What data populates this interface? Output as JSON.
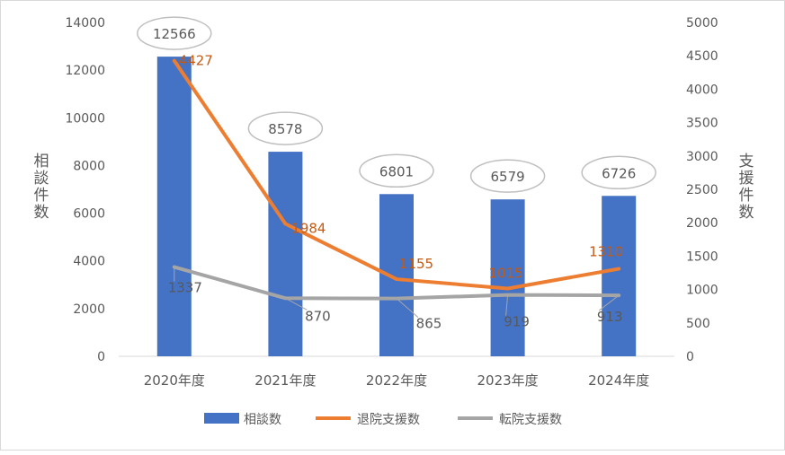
{
  "chart_data": {
    "type": "bar",
    "categories": [
      "2020年度",
      "2021年度",
      "2022年度",
      "2023年度",
      "2024年度"
    ],
    "left_axis": {
      "label": "相談件数",
      "ylim": [
        0,
        14000
      ],
      "ticks": [
        0,
        2000,
        4000,
        6000,
        8000,
        10000,
        12000,
        14000
      ]
    },
    "right_axis": {
      "label": "支援件数",
      "ylim": [
        0,
        5000
      ],
      "ticks": [
        0,
        500,
        1000,
        1500,
        2000,
        2500,
        3000,
        3500,
        4000,
        4500,
        5000
      ]
    },
    "series": [
      {
        "name": "相談数",
        "type": "bar",
        "axis": "left",
        "color": "#4472c4",
        "values": [
          12566,
          8578,
          6801,
          6579,
          6726
        ]
      },
      {
        "name": "退院支援数",
        "type": "line",
        "axis": "right",
        "color": "#ed7d31",
        "label_color": "#c55a11",
        "values": [
          4427,
          1984,
          1155,
          1015,
          1310
        ]
      },
      {
        "name": "転院支援数",
        "type": "line",
        "axis": "right",
        "color": "#a5a5a5",
        "label_color": "#595959",
        "values": [
          1337,
          870,
          865,
          919,
          913
        ]
      }
    ],
    "grid": false,
    "legend": "bottom"
  }
}
